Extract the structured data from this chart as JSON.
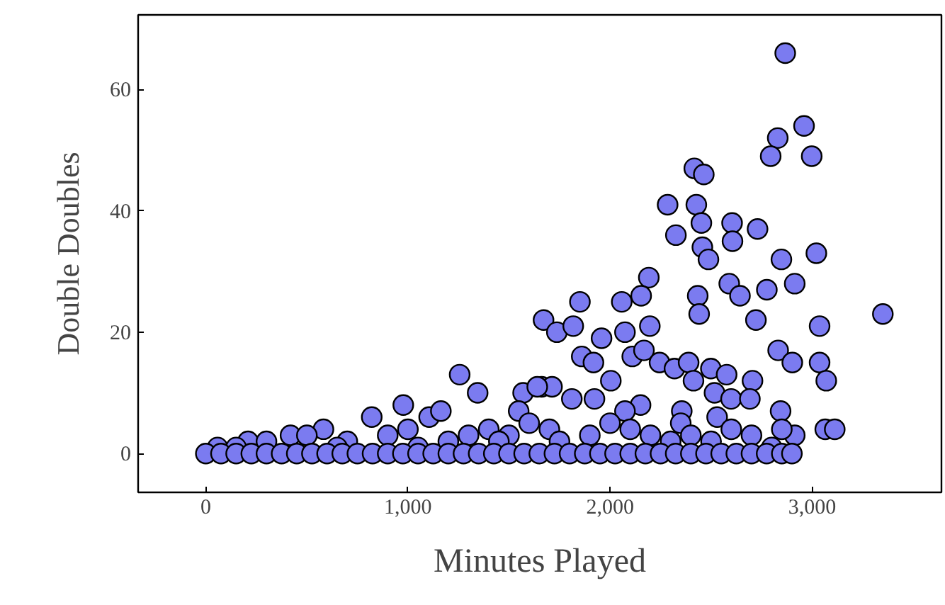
{
  "chart_data": {
    "type": "scatter",
    "xlabel": "Minutes Played",
    "ylabel": "Double Doubles",
    "xlim": [
      -335,
      3640
    ],
    "ylim": [
      -6.4,
      72.3
    ],
    "xticks": [
      0,
      {
        "value": 1000,
        "label": "1,000"
      },
      {
        "value": 2000,
        "label": "2,000"
      },
      {
        "value": 3000,
        "label": "3,000"
      }
    ],
    "yticks": [
      0,
      20,
      40,
      60
    ],
    "grid": false,
    "marker": "circle",
    "series": [
      {
        "color": "#7b7bf0",
        "x": [
          2867,
          2960,
          2830,
          2795,
          2998,
          2417,
          2464,
          2285,
          2427,
          2452,
          2604,
          2326,
          2606,
          2730,
          2457,
          2487,
          2848,
          3021,
          2914,
          2590,
          2643,
          2776,
          2192,
          2154,
          2058,
          1851,
          2434,
          2441,
          2722,
          3037,
          1671,
          1737,
          1818,
          1958,
          2074,
          2197,
          1860,
          1918,
          2110,
          2168,
          2245,
          2319,
          2389,
          2413,
          2499,
          2577,
          2705,
          2832,
          2902,
          3037,
          3070,
          2004,
          1662,
          1713,
          1811,
          1923,
          2151,
          2517,
          2599,
          2692,
          2844,
          2355,
          2530,
          2074,
          2914,
          3065,
          3112,
          3350,
          1256,
          1345,
          977,
          821,
          582,
          419,
          209,
          58,
          1105,
          1163,
          1570,
          1640,
          1548,
          1500,
          300,
          500,
          700,
          900,
          1000,
          1200,
          1300,
          1400,
          1450,
          1600,
          1700,
          1750,
          1900,
          2000,
          2100,
          2200,
          2300,
          2350,
          2400,
          2500,
          2600,
          2700,
          2800,
          2850,
          1050,
          650,
          150,
          0,
          75,
          150,
          225,
          300,
          375,
          450,
          525,
          600,
          675,
          750,
          825,
          900,
          975,
          1050,
          1125,
          1200,
          1275,
          1350,
          1425,
          1500,
          1575,
          1650,
          1725,
          1800,
          1875,
          1950,
          2025,
          2100,
          2175,
          2250,
          2325,
          2400,
          2475,
          2550,
          2625,
          2700,
          2775,
          2850,
          2900
        ],
        "values": [
          66,
          54,
          52,
          49,
          49,
          47,
          46,
          41,
          41,
          38,
          38,
          36,
          35,
          37,
          34,
          32,
          32,
          33,
          28,
          28,
          26,
          27,
          29,
          26,
          25,
          25,
          26,
          23,
          22,
          21,
          22,
          20,
          21,
          19,
          20,
          21,
          16,
          15,
          16,
          17,
          15,
          14,
          15,
          12,
          14,
          13,
          12,
          17,
          15,
          15,
          12,
          12,
          11,
          11,
          9,
          9,
          8,
          10,
          9,
          9,
          7,
          7,
          6,
          7,
          3,
          4,
          4,
          23,
          13,
          10,
          8,
          6,
          4,
          3,
          2,
          1,
          6,
          7,
          10,
          11,
          7,
          3,
          2,
          3,
          2,
          3,
          4,
          2,
          3,
          4,
          2,
          5,
          4,
          2,
          3,
          5,
          4,
          3,
          2,
          5,
          3,
          2,
          4,
          3,
          1,
          4,
          1,
          1,
          1,
          0,
          0,
          0,
          0,
          0,
          0,
          0,
          0,
          0,
          0,
          0,
          0,
          0,
          0,
          0,
          0,
          0,
          0,
          0,
          0,
          0,
          0,
          0,
          0,
          0,
          0,
          0,
          0,
          0,
          0,
          0,
          0,
          0,
          0,
          0,
          0,
          0,
          0,
          0,
          0
        ]
      }
    ]
  }
}
